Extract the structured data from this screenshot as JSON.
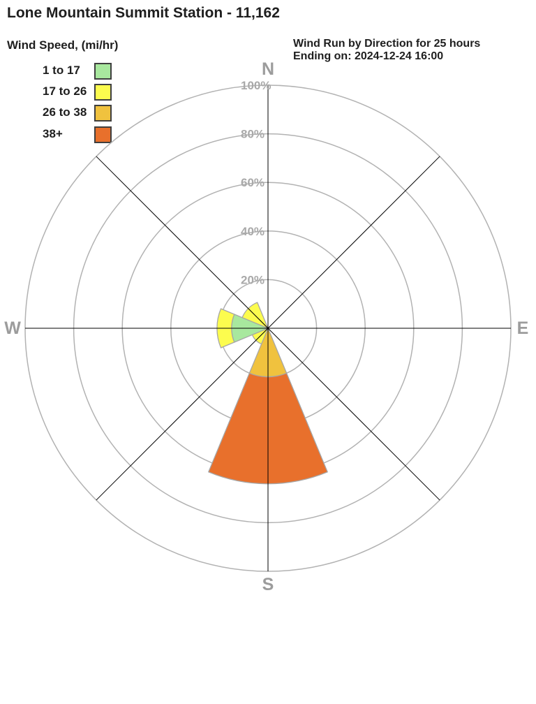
{
  "header": {
    "title": "Lone Mountain Summit Station - 11,162",
    "info_line1": "Wind Run by Direction for 25 hours",
    "info_line2": "Ending on: 2024-12-24 16:00"
  },
  "legend": {
    "title": "Wind Speed, (mi/hr)",
    "items": [
      {
        "label": "1 to 17",
        "color": "#a8e89e"
      },
      {
        "label": "17 to 26",
        "color": "#fcfc4e"
      },
      {
        "label": "26 to 38",
        "color": "#f0c23e"
      },
      {
        "label": "38+",
        "color": "#e8702c"
      }
    ]
  },
  "chart_data": {
    "type": "wind_rose",
    "title": "Wind Run by Direction for 25 hours Ending on: 2024-12-24 16:00",
    "units": "percent of total wind run",
    "directions": [
      "N",
      "NE",
      "E",
      "SE",
      "S",
      "SW",
      "W",
      "NW"
    ],
    "speed_bins": [
      {
        "label": "1 to 17",
        "color": "#a8e89e"
      },
      {
        "label": "17 to 26",
        "color": "#fcfc4e"
      },
      {
        "label": "26 to 38",
        "color": "#f0c23e"
      },
      {
        "label": "38+",
        "color": "#e8702c"
      }
    ],
    "series": [
      {
        "direction": "N",
        "values": [
          0,
          0,
          0,
          0
        ]
      },
      {
        "direction": "NE",
        "values": [
          0,
          0,
          0,
          0
        ]
      },
      {
        "direction": "E",
        "values": [
          0,
          0,
          0,
          0
        ]
      },
      {
        "direction": "SE",
        "values": [
          0,
          0,
          0,
          0
        ]
      },
      {
        "direction": "S",
        "values": [
          0,
          0,
          20,
          44
        ]
      },
      {
        "direction": "SW",
        "values": [
          0,
          7,
          0,
          0
        ]
      },
      {
        "direction": "W",
        "values": [
          15,
          6,
          0,
          0
        ]
      },
      {
        "direction": "NW",
        "values": [
          0,
          11.5,
          0,
          0
        ]
      }
    ],
    "rings_percent": [
      20,
      40,
      60,
      80,
      100
    ],
    "ring_labels": [
      "20%",
      "40%",
      "60%",
      "80%",
      "100%"
    ],
    "axis_max": 100,
    "grid": true,
    "legend_position": "top-left",
    "colors": {
      "ring": "#b2b2b2",
      "radial_line": "#000000",
      "ring_label": "#a9a9a9",
      "compass_label": "#9c9c9c",
      "petal_outline": "#a6a6a6"
    }
  }
}
